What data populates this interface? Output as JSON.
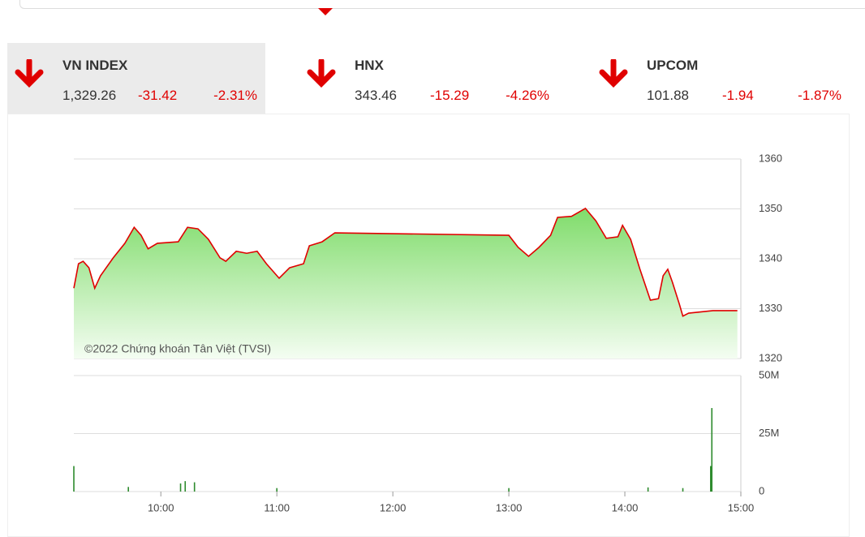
{
  "indices": [
    {
      "name": "VN INDEX",
      "value": "1,329.26",
      "change": "-31.42",
      "percent": "-2.31%"
    },
    {
      "name": "HNX",
      "value": "343.46",
      "change": "-15.29",
      "percent": "-4.26%"
    },
    {
      "name": "UPCOM",
      "value": "101.88",
      "change": "-1.94",
      "percent": "-1.87%"
    }
  ],
  "chart_data": [
    {
      "type": "area",
      "annotation": "©2022 Chứng khoán Tân Việt (TVSI)",
      "color": "#e00000",
      "x": [
        9.25,
        9.29,
        9.33,
        9.38,
        9.43,
        9.48,
        9.59,
        9.69,
        9.77,
        9.83,
        9.89,
        9.97,
        10.15,
        10.23,
        10.32,
        10.41,
        10.51,
        10.56,
        10.65,
        10.74,
        10.83,
        10.91,
        11.02,
        11.11,
        11.23,
        11.28,
        11.39,
        11.5,
        13.0,
        13.08,
        13.17,
        13.26,
        13.36,
        13.42,
        13.54,
        13.66,
        13.75,
        13.84,
        13.94,
        13.98,
        14.05,
        14.13,
        14.22,
        14.29,
        14.33,
        14.37,
        14.41,
        14.47,
        14.5,
        14.55,
        14.76,
        14.97
      ],
      "values": [
        1334.1,
        1339,
        1339.5,
        1338.2,
        1334.1,
        1336.6,
        1340.2,
        1343.1,
        1346.3,
        1344.7,
        1342,
        1343.1,
        1343.4,
        1346.3,
        1346,
        1343.9,
        1340.2,
        1339.5,
        1341.5,
        1341.1,
        1341.5,
        1339,
        1336.1,
        1338.2,
        1339,
        1342.6,
        1343.4,
        1345.2,
        1344.7,
        1342.3,
        1340.5,
        1342.3,
        1344.7,
        1348.3,
        1348.5,
        1350.1,
        1347.6,
        1344.1,
        1344.4,
        1346.7,
        1343.9,
        1337.9,
        1331.7,
        1332,
        1336.6,
        1337.9,
        1335.3,
        1330.9,
        1328.5,
        1329.1,
        1329.6,
        1329.6
      ],
      "xlim": [
        9.25,
        15
      ],
      "ylim": [
        1320,
        1360
      ],
      "yticks": [
        1320,
        1330,
        1340,
        1350,
        1360
      ],
      "grid": true
    },
    {
      "type": "bar",
      "color": "#2e8b2e",
      "x": [
        9.25,
        9.72,
        10.17,
        10.21,
        10.29,
        11.0,
        13.0,
        14.2,
        14.5,
        14.74,
        14.75
      ],
      "values": [
        11000000,
        2000000,
        3500000,
        4500000,
        4000000,
        1500000,
        1500000,
        1800000,
        1500000,
        11000000,
        36000000
      ],
      "xlim": [
        9.25,
        15
      ],
      "ylim": [
        0,
        50000000
      ],
      "yticks": [
        0,
        {
          "value": 25000000,
          "label": "25M"
        },
        {
          "value": 50000000,
          "label": "50M"
        }
      ],
      "xticks": [
        {
          "value": 10,
          "label": "10:00"
        },
        {
          "value": 11,
          "label": "11:00"
        },
        {
          "value": 12,
          "label": "12:00"
        },
        {
          "value": 13,
          "label": "13:00"
        },
        {
          "value": 14,
          "label": "14:00"
        },
        {
          "value": 15,
          "label": "15:00"
        }
      ],
      "grid": true
    }
  ]
}
